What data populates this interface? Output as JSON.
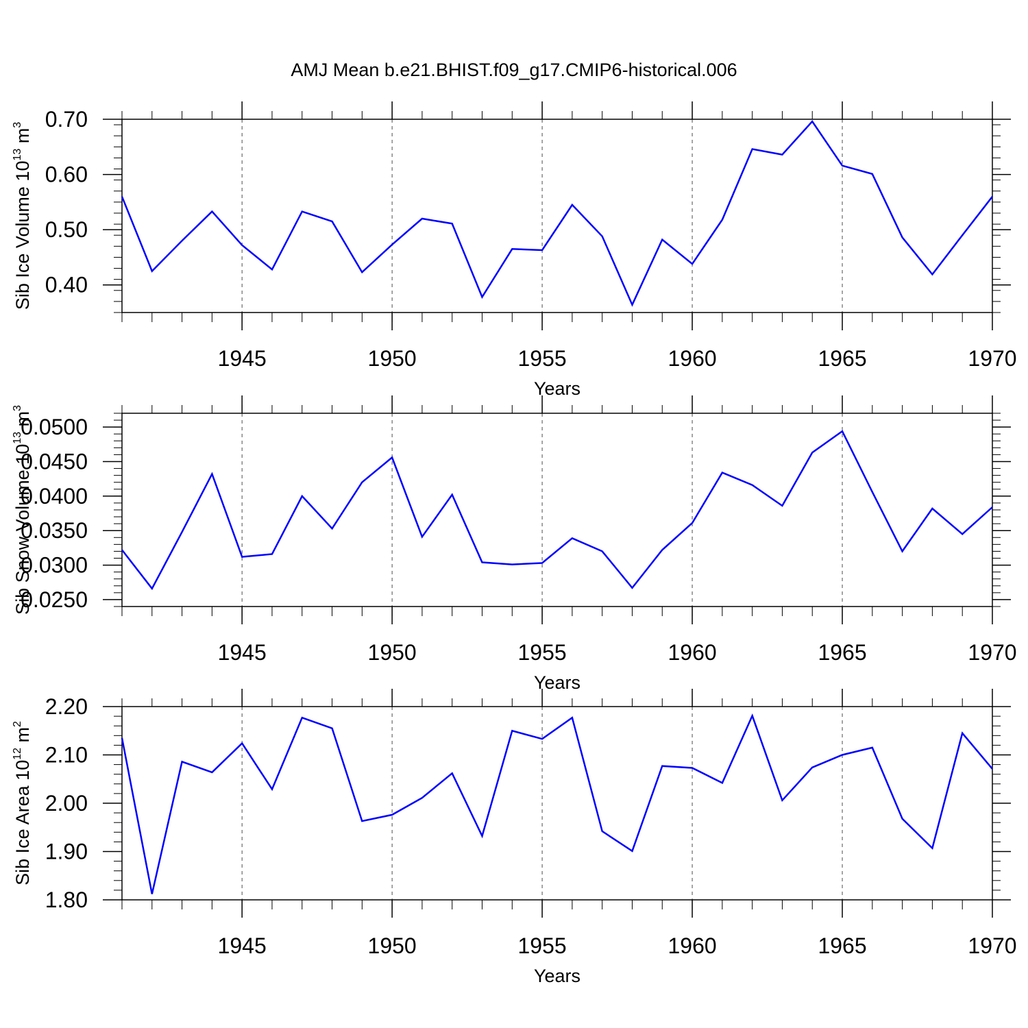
{
  "title": "AMJ Mean b.e21.BHIST.f09_g17.CMIP6-historical.006",
  "colors": {
    "series": "#0000ff",
    "axes": "#000000",
    "grid": "#000000"
  },
  "chart_data": [
    {
      "type": "line",
      "xlabel": "Years",
      "ylabel": {
        "text": "Sib Ice Volume 10",
        "exp": "13",
        "unit": " m",
        "unit_exp": "3"
      },
      "xlim": [
        1941,
        1970
      ],
      "ylim": [
        0.35,
        0.7
      ],
      "x_ticks": [
        1945,
        1950,
        1955,
        1960,
        1965,
        1970
      ],
      "x_tick_labels": [
        "1945",
        "1950",
        "1955",
        "1960",
        "1965",
        "1970"
      ],
      "y_ticks": [
        0.4,
        0.5,
        0.6,
        0.7
      ],
      "y_tick_labels": [
        "0.40",
        "0.50",
        "0.60",
        "0.70"
      ],
      "grid": "vertical dashed at major x ticks",
      "x": [
        1941,
        1942,
        1943,
        1944,
        1945,
        1946,
        1947,
        1948,
        1949,
        1950,
        1951,
        1952,
        1953,
        1954,
        1955,
        1956,
        1957,
        1958,
        1959,
        1960,
        1961,
        1962,
        1963,
        1964,
        1965,
        1966,
        1967,
        1968,
        1969,
        1970
      ],
      "values": [
        0.56,
        0.425,
        0.48,
        0.533,
        0.472,
        0.428,
        0.533,
        0.515,
        0.423,
        0.473,
        0.52,
        0.511,
        0.378,
        0.465,
        0.463,
        0.545,
        0.488,
        0.364,
        0.482,
        0.438,
        0.518,
        0.646,
        0.636,
        0.696,
        0.616,
        0.601,
        0.486,
        0.419,
        0.49,
        0.56
      ]
    },
    {
      "type": "line",
      "xlabel": "Years",
      "ylabel": {
        "text": "Sib Snow Volume 10",
        "exp": "13",
        "unit": " m",
        "unit_exp": "3"
      },
      "xlim": [
        1941,
        1970
      ],
      "ylim": [
        0.024,
        0.052
      ],
      "x_ticks": [
        1945,
        1950,
        1955,
        1960,
        1965,
        1970
      ],
      "x_tick_labels": [
        "1945",
        "1950",
        "1955",
        "1960",
        "1965",
        "1970"
      ],
      "y_ticks": [
        0.025,
        0.03,
        0.035,
        0.04,
        0.045,
        0.05
      ],
      "y_tick_labels": [
        "0.0250",
        "0.0300",
        "0.0350",
        "0.0400",
        "0.0450",
        "0.0500"
      ],
      "grid": "vertical dashed at major x ticks",
      "x": [
        1941,
        1942,
        1943,
        1944,
        1945,
        1946,
        1947,
        1948,
        1949,
        1950,
        1951,
        1952,
        1953,
        1954,
        1955,
        1956,
        1957,
        1958,
        1959,
        1960,
        1961,
        1962,
        1963,
        1964,
        1965,
        1966,
        1967,
        1968,
        1969,
        1970
      ],
      "values": [
        0.0322,
        0.0266,
        0.0348,
        0.0432,
        0.0312,
        0.0316,
        0.04,
        0.0353,
        0.042,
        0.0456,
        0.0341,
        0.0402,
        0.0304,
        0.0301,
        0.0303,
        0.0339,
        0.032,
        0.0267,
        0.0322,
        0.0361,
        0.0434,
        0.0416,
        0.0386,
        0.0463,
        0.0494,
        0.0406,
        0.032,
        0.0382,
        0.0345,
        0.0384
      ]
    },
    {
      "type": "line",
      "xlabel": "Years",
      "ylabel": {
        "text": "Sib Ice Area 10",
        "exp": "12",
        "unit": " m",
        "unit_exp": "2"
      },
      "xlim": [
        1941,
        1970
      ],
      "ylim": [
        1.8,
        2.2
      ],
      "x_ticks": [
        1945,
        1950,
        1955,
        1960,
        1965,
        1970
      ],
      "x_tick_labels": [
        "1945",
        "1950",
        "1955",
        "1960",
        "1965",
        "1970"
      ],
      "y_ticks": [
        1.8,
        1.9,
        2.0,
        2.1,
        2.2
      ],
      "y_tick_labels": [
        "1.80",
        "1.90",
        "2.00",
        "2.10",
        "2.20"
      ],
      "grid": "vertical dashed at major x ticks",
      "x": [
        1941,
        1942,
        1943,
        1944,
        1945,
        1946,
        1947,
        1948,
        1949,
        1950,
        1951,
        1952,
        1953,
        1954,
        1955,
        1956,
        1957,
        1958,
        1959,
        1960,
        1961,
        1962,
        1963,
        1964,
        1965,
        1966,
        1967,
        1968,
        1969,
        1970
      ],
      "values": [
        2.135,
        1.812,
        2.086,
        2.064,
        2.124,
        2.029,
        2.177,
        2.155,
        1.963,
        1.976,
        2.011,
        2.062,
        1.932,
        2.15,
        2.133,
        2.177,
        1.942,
        1.901,
        2.077,
        2.073,
        2.042,
        2.181,
        2.006,
        2.074,
        2.1,
        2.115,
        1.968,
        1.907,
        2.145,
        2.071
      ]
    }
  ]
}
